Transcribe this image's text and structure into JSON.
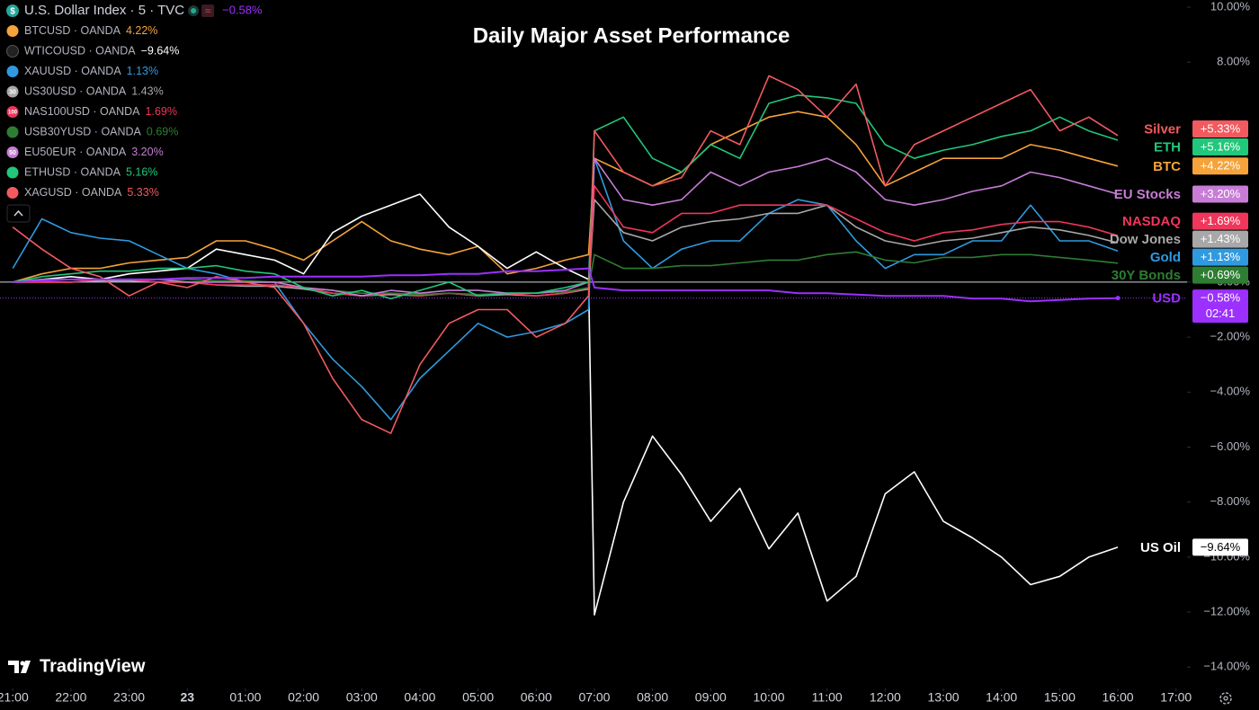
{
  "chart_data": {
    "type": "line",
    "title": "Daily Major Asset Performance",
    "watermark": "TradingView",
    "header_icon": "$",
    "status_icon": "≈",
    "countdown": "02:41",
    "xlim": [
      -0.22,
      20.19
    ],
    "ylim": [
      -14.58,
      10.26
    ],
    "xticks": [
      {
        "value": 0,
        "label": "21:00"
      },
      {
        "value": 1,
        "label": "22:00"
      },
      {
        "value": 2,
        "label": "23:00"
      },
      {
        "value": 3,
        "label": "23"
      },
      {
        "value": 4,
        "label": "01:00"
      },
      {
        "value": 5,
        "label": "02:00"
      },
      {
        "value": 6,
        "label": "03:00"
      },
      {
        "value": 7,
        "label": "04:00"
      },
      {
        "value": 8,
        "label": "05:00"
      },
      {
        "value": 9,
        "label": "06:00"
      },
      {
        "value": 10,
        "label": "07:00"
      },
      {
        "value": 11,
        "label": "08:00"
      },
      {
        "value": 12,
        "label": "09:00"
      },
      {
        "value": 13,
        "label": "10:00"
      },
      {
        "value": 14,
        "label": "11:00"
      },
      {
        "value": 15,
        "label": "12:00"
      },
      {
        "value": 16,
        "label": "13:00"
      },
      {
        "value": 17,
        "label": "14:00"
      },
      {
        "value": 18,
        "label": "15:00"
      },
      {
        "value": 19,
        "label": "16:00"
      },
      {
        "value": 20,
        "label": "17:00"
      }
    ],
    "yticks": [
      {
        "value": 10,
        "label": "10.00%"
      },
      {
        "value": 8,
        "label": "8.00%"
      },
      {
        "value": 0,
        "label": "0.00%"
      },
      {
        "value": -2,
        "label": "−2.00%"
      },
      {
        "value": -4,
        "label": "−4.00%"
      },
      {
        "value": -6,
        "label": "−6.00%"
      },
      {
        "value": -8,
        "label": "−8.00%"
      },
      {
        "value": -10,
        "label": "−10.00%"
      },
      {
        "value": -12,
        "label": "−12.00%"
      },
      {
        "value": -14,
        "label": "−14.00%"
      }
    ],
    "zero_line": true,
    "x": [
      0,
      0.5,
      1,
      1.5,
      2,
      2.5,
      3,
      3.5,
      4,
      4.5,
      5,
      5.5,
      6,
      6.5,
      7,
      7.5,
      8,
      8.5,
      9,
      9.5,
      9.9,
      10,
      10.5,
      11,
      11.5,
      12,
      12.5,
      13,
      13.5,
      14,
      14.5,
      15,
      15.5,
      16,
      16.5,
      17,
      17.5,
      18,
      18.5,
      19
    ],
    "series": [
      {
        "name": "BTC",
        "ticker": "BTCUSD · OANDA",
        "color": "#f5a33a",
        "legend_label": "4.22%",
        "end_label": "+4.22%",
        "values": [
          0,
          0.3,
          0.5,
          0.5,
          0.7,
          0.8,
          0.9,
          1.5,
          1.5,
          1.2,
          0.8,
          1.5,
          2.2,
          1.5,
          1.2,
          1.0,
          1.3,
          0.3,
          0.5,
          0.8,
          1.0,
          4.5,
          4.0,
          3.5,
          4.0,
          5.0,
          5.5,
          6.0,
          6.2,
          6.0,
          5.0,
          3.5,
          4.0,
          4.5,
          4.5,
          4.5,
          5.0,
          4.8,
          4.5,
          4.22
        ]
      },
      {
        "name": "US Oil",
        "ticker": "WTICOUSD · OANDA",
        "color": "#ffffff",
        "legend_label": "−9.64%",
        "end_label": "−9.64%",
        "values": [
          0,
          0.1,
          0.2,
          0.1,
          0.3,
          0.4,
          0.5,
          1.2,
          1.0,
          0.8,
          0.3,
          1.8,
          2.4,
          2.8,
          3.2,
          2.0,
          1.3,
          0.5,
          1.1,
          0.5,
          0.1,
          -12.1,
          -8,
          -5.6,
          -7,
          -8.7,
          -7.5,
          -9.7,
          -8.4,
          -11.6,
          -10.7,
          -7.7,
          -6.9,
          -8.7,
          -9.3,
          -10,
          -11,
          -10.7,
          -10,
          -9.64
        ]
      },
      {
        "name": "Gold",
        "ticker": "XAUUSD · OANDA",
        "color": "#2f9ae0",
        "legend_label": "1.13%",
        "end_label": "+1.13%",
        "values": [
          0.5,
          2.3,
          1.8,
          1.6,
          1.5,
          1.0,
          0.5,
          0.3,
          0,
          0,
          -1.5,
          -2.8,
          -3.8,
          -5.0,
          -3.5,
          -2.5,
          -1.5,
          -2.0,
          -1.8,
          -1.5,
          -1.0,
          4.5,
          1.5,
          0.5,
          1.2,
          1.5,
          1.5,
          2.5,
          3.0,
          2.8,
          1.5,
          0.5,
          1.0,
          1.0,
          1.5,
          1.5,
          2.8,
          1.5,
          1.5,
          1.13
        ]
      },
      {
        "name": "Dow Jones",
        "ticker": "US30USD · OANDA",
        "color": "#a8a8a8",
        "legend_label": "1.43%",
        "end_label": "+1.43%",
        "icon_text": "30",
        "values": [
          0,
          0,
          0,
          0.05,
          0.05,
          0,
          0,
          -0.1,
          -0.15,
          -0.15,
          -0.25,
          -0.4,
          -0.5,
          -0.45,
          -0.5,
          -0.4,
          -0.5,
          -0.45,
          -0.5,
          -0.4,
          -0.25,
          3.0,
          1.8,
          1.5,
          2.0,
          2.2,
          2.3,
          2.5,
          2.5,
          2.8,
          2.0,
          1.5,
          1.3,
          1.5,
          1.6,
          1.8,
          2.0,
          1.9,
          1.7,
          1.43
        ]
      },
      {
        "name": "NASDAQ",
        "ticker": "NAS100USD · OANDA",
        "color": "#f0365a",
        "legend_label": "1.69%",
        "end_label": "+1.69%",
        "icon_text": "100",
        "values": [
          0,
          0,
          0,
          0.1,
          0.1,
          0,
          0,
          -0.1,
          -0.1,
          -0.1,
          -0.2,
          -0.4,
          -0.5,
          -0.4,
          -0.5,
          -0.4,
          -0.5,
          -0.4,
          -0.5,
          -0.4,
          -0.2,
          3.5,
          2.0,
          1.8,
          2.5,
          2.5,
          2.8,
          2.8,
          2.8,
          2.8,
          2.3,
          1.8,
          1.5,
          1.8,
          1.9,
          2.1,
          2.2,
          2.2,
          2.0,
          1.69
        ]
      },
      {
        "name": "30Y Bonds",
        "ticker": "USB30YUSD · OANDA",
        "color": "#2e7d32",
        "legend_label": "0.69%",
        "end_label": "+0.69%",
        "values": [
          0,
          0.1,
          0.1,
          0.1,
          0.1,
          0.1,
          0.1,
          0.05,
          0.05,
          0,
          -0.2,
          -0.3,
          -0.4,
          -0.4,
          -0.45,
          -0.4,
          -0.45,
          -0.4,
          -0.4,
          -0.35,
          -0.2,
          1.0,
          0.5,
          0.5,
          0.6,
          0.6,
          0.7,
          0.8,
          0.8,
          1.0,
          1.1,
          0.8,
          0.7,
          0.9,
          0.9,
          1.0,
          1.0,
          0.9,
          0.8,
          0.69
        ]
      },
      {
        "name": "EU Stocks",
        "ticker": "EU50EUR · OANDA",
        "color": "#c77dd6",
        "legend_label": "3.20%",
        "end_label": "+3.20%",
        "icon_text": "50",
        "values": [
          0,
          0.1,
          0.1,
          0.1,
          0.1,
          0.1,
          0,
          0,
          0,
          0,
          -0.2,
          -0.3,
          -0.5,
          -0.3,
          -0.4,
          -0.3,
          -0.3,
          -0.4,
          -0.4,
          -0.3,
          0,
          4.5,
          3.0,
          2.8,
          3.0,
          4.0,
          3.5,
          4.0,
          4.2,
          4.5,
          4.0,
          3.0,
          2.8,
          3.0,
          3.3,
          3.5,
          4.0,
          3.8,
          3.5,
          3.2
        ]
      },
      {
        "name": "ETH",
        "ticker": "ETHUSD · OANDA",
        "color": "#21c77a",
        "legend_label": "5.16%",
        "end_label": "+5.16%",
        "values": [
          0,
          0.2,
          0.3,
          0.4,
          0.4,
          0.5,
          0.5,
          0.6,
          0.4,
          0.3,
          -0.2,
          -0.5,
          -0.3,
          -0.6,
          -0.3,
          0,
          -0.5,
          -0.4,
          -0.4,
          -0.2,
          0,
          5.5,
          6.0,
          4.5,
          4.0,
          5.0,
          4.5,
          6.5,
          6.8,
          6.7,
          6.5,
          5.0,
          4.5,
          4.8,
          5.0,
          5.3,
          5.5,
          6.0,
          5.5,
          5.16
        ]
      },
      {
        "name": "Silver",
        "ticker": "XAGUSD · OANDA",
        "color": "#f25a5f",
        "legend_label": "5.33%",
        "end_label": "+5.33%",
        "values": [
          2.0,
          1.2,
          0.5,
          0.2,
          -0.5,
          0,
          -0.2,
          0.2,
          0,
          -0.2,
          -1.5,
          -3.5,
          -5.0,
          -5.5,
          -3.0,
          -1.5,
          -1.0,
          -1.0,
          -2.0,
          -1.5,
          -0.5,
          5.5,
          4.0,
          3.5,
          3.8,
          5.5,
          5.0,
          7.5,
          7.0,
          6.0,
          7.2,
          3.5,
          5.0,
          5.5,
          6.0,
          6.5,
          7.0,
          5.5,
          6.0,
          5.33
        ]
      },
      {
        "name": "USD",
        "ticker": "U.S. Dollar Index · 5 · TVC",
        "color": "#9b30ff",
        "legend_label": "−0.58%",
        "end_label": "−0.58%",
        "main": true,
        "values": [
          0,
          0.05,
          0.1,
          0.1,
          0.1,
          0.1,
          0.15,
          0.15,
          0.15,
          0.2,
          0.2,
          0.2,
          0.2,
          0.25,
          0.25,
          0.3,
          0.3,
          0.4,
          0.4,
          0.45,
          0.5,
          -0.2,
          -0.3,
          -0.3,
          -0.3,
          -0.3,
          -0.3,
          -0.3,
          -0.4,
          -0.4,
          -0.45,
          -0.5,
          -0.5,
          -0.5,
          -0.6,
          -0.6,
          -0.7,
          -0.65,
          -0.6,
          -0.58
        ]
      }
    ]
  }
}
